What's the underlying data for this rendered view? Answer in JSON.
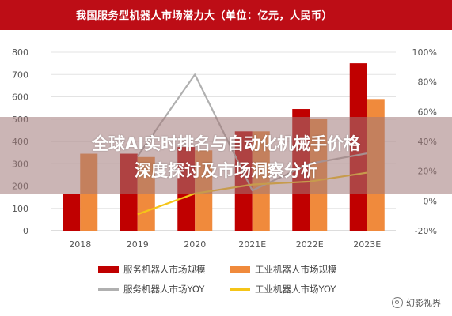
{
  "chart_data": {
    "type": "bar",
    "title": "我国服务型机器人市场潜力大（单位：亿元，人民币）",
    "categories": [
      "2018",
      "2019",
      "2020",
      "2021E",
      "2022E",
      "2023E"
    ],
    "series": [
      {
        "name": "服务机器人市场规模",
        "kind": "bar",
        "axis": "left",
        "color": "#c00000",
        "values": [
          165,
          345,
          375,
          445,
          545,
          750
        ]
      },
      {
        "name": "工业机器人市场规模",
        "kind": "bar",
        "axis": "left",
        "color": "#f08a3c",
        "values": [
          345,
          330,
          360,
          445,
          500,
          590
        ]
      },
      {
        "name": "服务机器人市场YOY",
        "kind": "line",
        "axis": "right",
        "color": "#b0b0b0",
        "values": [
          null,
          30,
          85,
          7,
          25,
          32
        ]
      },
      {
        "name": "工业机器人市场YOY",
        "kind": "line",
        "axis": "right",
        "color": "#f5c518",
        "values": [
          null,
          -9,
          5,
          11,
          13,
          19
        ]
      }
    ],
    "ylim_left": [
      0,
      800
    ],
    "yticks_left": [
      "0",
      "100",
      "200",
      "300",
      "400",
      "500",
      "600",
      "700",
      "800"
    ],
    "ylim_right": [
      -20,
      100
    ],
    "yticks_right": [
      "-20%",
      "0%",
      "20%",
      "40%",
      "60%",
      "80%",
      "100%"
    ],
    "grid": true,
    "legend_position": "bottom"
  },
  "overlay": {
    "line1": "全球AI实时排名与自动化机械手价格",
    "line2": "深度探讨及市场洞察分析"
  },
  "watermark": {
    "icon": "wechat-icon",
    "text": "幻影视界"
  }
}
